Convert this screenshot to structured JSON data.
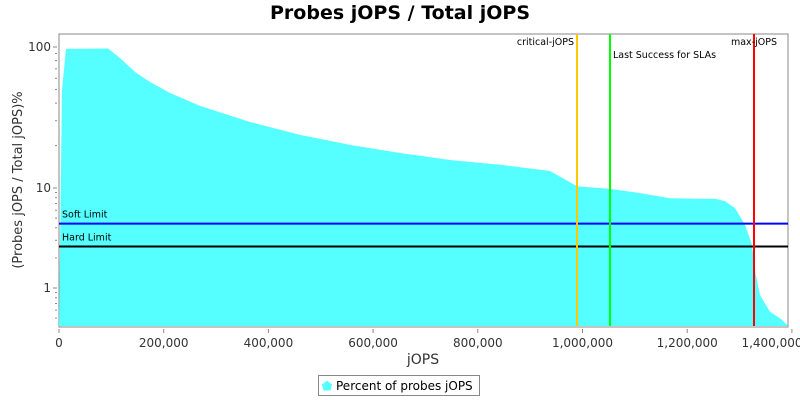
{
  "chart_data": {
    "type": "area",
    "title": "Probes jOPS / Total jOPS",
    "xlabel": "jOPS",
    "ylabel": "(Probes jOPS / Total jOPS)%",
    "xlim": [
      0,
      1392500
    ],
    "ylim": [
      0.42,
      130
    ],
    "yscale": "log",
    "x_ticks": [
      "0",
      "200,000",
      "400,000",
      "600,000",
      "800,000",
      "1,000,000",
      "1,200,000",
      "1,400,000"
    ],
    "y_ticks": [
      "1",
      "10",
      "100"
    ],
    "grid": false,
    "legend_position": "bottom",
    "series": [
      {
        "name": "Percent of probes jOPS",
        "color": "#55ffff",
        "x": [
          0,
          5730,
          13370,
          93600,
          116500,
          145200,
          173800,
          212000,
          269300,
          364800,
          460300,
          555900,
          651400,
          746900,
          842400,
          937900,
          989500,
          1052500,
          1109800,
          1167100,
          1224400,
          1253100,
          1272200,
          1291300,
          1310400,
          1323800,
          1329500,
          1339100,
          1358200,
          1371600,
          1381100,
          1392500
        ],
        "y": [
          0.42,
          49.5,
          96.9,
          97.6,
          83.6,
          66.5,
          56.5,
          47.2,
          38.2,
          29.4,
          23.8,
          20.2,
          17.7,
          15.8,
          14.6,
          13.2,
          10.3,
          9.8,
          8.9,
          7.9,
          7.8,
          7.8,
          7.4,
          6.3,
          4.3,
          2.7,
          1.5,
          0.85,
          0.58,
          0.52,
          0.48,
          0.42
        ]
      }
    ],
    "hlines": [
      {
        "label": "Soft Limit",
        "value": 4.4,
        "color": "#0000ff"
      },
      {
        "label": "Hard Limit",
        "value": 2.6,
        "color": "#000000"
      }
    ],
    "vlines": [
      {
        "label": "critical-jOPS",
        "value": 989500,
        "color": "#ffc800"
      },
      {
        "label": "Last Success for SLAs",
        "value": 1052500,
        "color": "#00ff00"
      },
      {
        "label": "max-jOPS",
        "value": 1327600,
        "color": "#ff0000"
      }
    ]
  }
}
